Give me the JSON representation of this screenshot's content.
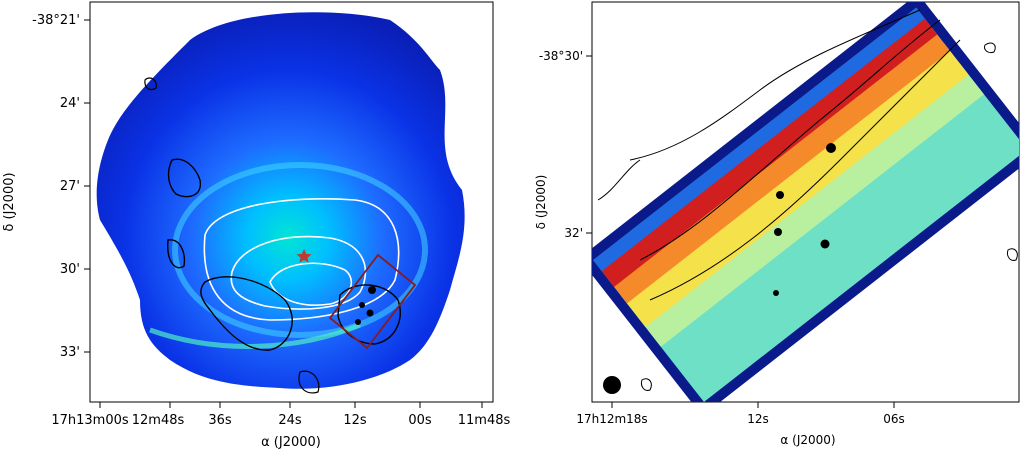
{
  "left_panel": {
    "y_ticks": [
      "-38°21'",
      "24'",
      "27'",
      "30'",
      "33'"
    ],
    "x_ticks": [
      "17h13m00s",
      "12m48s",
      "36s",
      "24s",
      "12s",
      "00s",
      "11m48s"
    ],
    "x_axis_title": "α (J2000)",
    "y_axis_title": "δ (J2000)"
  },
  "right_panel": {
    "y_ticks": [
      "-38°30'",
      "32'"
    ],
    "x_ticks": [
      "17h12m18s",
      "12s",
      "06s"
    ],
    "x_axis_title": "α (J2000)",
    "y_axis_title": "δ (J2000)"
  },
  "colors": {
    "colormap": "jet",
    "white_contours": "#ffffff",
    "black_contours": "#000000",
    "box_outline": "#8b1a1a",
    "star_marker": "#c0392b"
  }
}
